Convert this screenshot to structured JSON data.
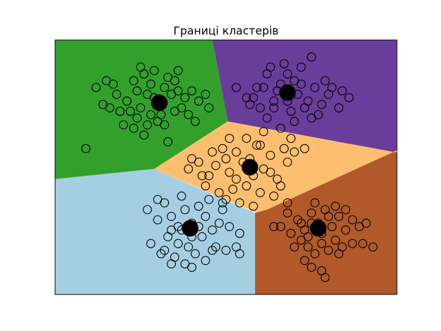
{
  "chart_data": {
    "type": "scatter",
    "title": "Границі кластерів",
    "xlabel": "",
    "ylabel": "",
    "xlim": [
      0,
      10
    ],
    "ylim": [
      0,
      7.5
    ],
    "ticks_visible": false,
    "grid": false,
    "regions": [
      {
        "color": "#33a02c",
        "polygon": [
          [
            0,
            7.5
          ],
          [
            4.6,
            7.5
          ],
          [
            5.05,
            5.1
          ],
          [
            2.9,
            3.7
          ],
          [
            0,
            3.4
          ]
        ]
      },
      {
        "color": "#6a3d9a",
        "polygon": [
          [
            4.6,
            7.5
          ],
          [
            10,
            7.5
          ],
          [
            10,
            4.25
          ],
          [
            9.9,
            4.2
          ],
          [
            5.05,
            5.1
          ]
        ]
      },
      {
        "color": "#fdbf6f",
        "polygon": [
          [
            2.9,
            3.7
          ],
          [
            5.05,
            5.1
          ],
          [
            9.9,
            4.2
          ],
          [
            6.2,
            2.5
          ],
          [
            5.9,
            2.4
          ]
        ]
      },
      {
        "color": "#a6cee3",
        "polygon": [
          [
            0,
            0
          ],
          [
            5.85,
            0
          ],
          [
            5.85,
            2.4
          ],
          [
            2.9,
            3.7
          ],
          [
            0,
            3.4
          ]
        ]
      },
      {
        "color": "#b15928",
        "polygon": [
          [
            5.85,
            0
          ],
          [
            10,
            0
          ],
          [
            10,
            4.2
          ],
          [
            9.9,
            4.2
          ],
          [
            6.2,
            2.5
          ],
          [
            5.85,
            2.4
          ]
        ]
      }
    ],
    "centroids": [
      {
        "x": 3.05,
        "y": 5.65
      },
      {
        "x": 6.8,
        "y": 5.95
      },
      {
        "x": 5.7,
        "y": 3.75
      },
      {
        "x": 3.95,
        "y": 1.95
      },
      {
        "x": 7.7,
        "y": 1.95
      }
    ],
    "points": [
      [
        1.2,
        6.1
      ],
      [
        1.5,
        6.3
      ],
      [
        1.7,
        6.2
      ],
      [
        1.4,
        5.6
      ],
      [
        1.6,
        5.5
      ],
      [
        1.9,
        5.4
      ],
      [
        2.1,
        5.7
      ],
      [
        2.3,
        6.3
      ],
      [
        2.6,
        6.5
      ],
      [
        2.4,
        5.2
      ],
      [
        2.7,
        5.0
      ],
      [
        2.9,
        5.8
      ],
      [
        3.2,
        6.1
      ],
      [
        3.4,
        5.9
      ],
      [
        3.1,
        5.3
      ],
      [
        3.5,
        5.4
      ],
      [
        3.6,
        6.0
      ],
      [
        2.8,
        6.2
      ],
      [
        3.3,
        6.4
      ],
      [
        3.0,
        5.6
      ],
      [
        2.5,
        5.5
      ],
      [
        3.8,
        5.8
      ],
      [
        4.2,
        5.7
      ],
      [
        4.1,
        5.1
      ],
      [
        4.5,
        5.5
      ],
      [
        3.9,
        5.3
      ],
      [
        2.0,
        5.0
      ],
      [
        2.6,
        4.7
      ],
      [
        3.3,
        4.5
      ],
      [
        0.9,
        4.3
      ],
      [
        2.3,
        4.9
      ],
      [
        2.8,
        5.3
      ],
      [
        3.5,
        6.3
      ],
      [
        1.8,
        5.9
      ],
      [
        2.2,
        5.4
      ],
      [
        2.7,
        5.9
      ],
      [
        3.2,
        5.0
      ],
      [
        3.7,
        5.5
      ],
      [
        4.0,
        6.0
      ],
      [
        4.4,
        5.9
      ],
      [
        2.4,
        6.0
      ],
      [
        2.9,
        6.6
      ],
      [
        3.0,
        5.1
      ],
      [
        2.5,
        6.7
      ],
      [
        3.6,
        6.6
      ],
      [
        5.3,
        6.1
      ],
      [
        5.6,
        5.8
      ],
      [
        5.9,
        6.1
      ],
      [
        6.2,
        6.5
      ],
      [
        6.4,
        5.7
      ],
      [
        6.6,
        6.2
      ],
      [
        6.8,
        5.7
      ],
      [
        7.0,
        6.3
      ],
      [
        7.2,
        6.7
      ],
      [
        7.4,
        5.7
      ],
      [
        7.6,
        6.1
      ],
      [
        7.8,
        5.6
      ],
      [
        8.0,
        5.9
      ],
      [
        8.1,
        6.1
      ],
      [
        8.4,
        6.0
      ],
      [
        7.9,
        6.3
      ],
      [
        6.7,
        6.8
      ],
      [
        6.0,
        5.5
      ],
      [
        5.8,
        5.8
      ],
      [
        6.4,
        5.5
      ],
      [
        6.9,
        5.4
      ],
      [
        7.3,
        5.5
      ],
      [
        7.7,
        5.3
      ],
      [
        8.3,
        5.5
      ],
      [
        6.2,
        5.2
      ],
      [
        7.0,
        5.1
      ],
      [
        6.5,
        6.0
      ],
      [
        7.1,
        5.9
      ],
      [
        6.3,
        6.7
      ],
      [
        7.5,
        7.0
      ],
      [
        7.2,
        6.2
      ],
      [
        8.6,
        5.8
      ],
      [
        7.5,
        5.2
      ],
      [
        6.1,
        6.1
      ],
      [
        6.8,
        6.5
      ],
      [
        5.7,
        5.6
      ],
      [
        3.9,
        3.7
      ],
      [
        4.2,
        3.9
      ],
      [
        4.5,
        3.5
      ],
      [
        4.7,
        3.8
      ],
      [
        4.9,
        4.3
      ],
      [
        5.1,
        3.6
      ],
      [
        5.3,
        4.2
      ],
      [
        5.5,
        3.9
      ],
      [
        5.7,
        4.0
      ],
      [
        5.9,
        4.4
      ],
      [
        6.1,
        3.7
      ],
      [
        6.3,
        4.1
      ],
      [
        6.5,
        3.4
      ],
      [
        6.8,
        3.9
      ],
      [
        7.0,
        4.2
      ],
      [
        4.4,
        3.2
      ],
      [
        4.8,
        3.0
      ],
      [
        5.2,
        3.1
      ],
      [
        5.6,
        3.2
      ],
      [
        6.0,
        3.0
      ],
      [
        6.4,
        2.9
      ],
      [
        6.6,
        3.2
      ],
      [
        5.0,
        2.8
      ],
      [
        5.4,
        2.7
      ],
      [
        5.8,
        2.6
      ],
      [
        4.6,
        4.2
      ],
      [
        5.1,
        4.6
      ],
      [
        5.6,
        4.6
      ],
      [
        6.1,
        4.8
      ],
      [
        6.6,
        4.9
      ],
      [
        4.3,
        3.5
      ],
      [
        5.8,
        3.5
      ],
      [
        6.9,
        4.6
      ],
      [
        7.3,
        4.3
      ],
      [
        5.3,
        3.4
      ],
      [
        4.0,
        4.0
      ],
      [
        6.0,
        4.4
      ],
      [
        6.3,
        3.6
      ],
      [
        5.0,
        4.0
      ],
      [
        6.7,
        4.3
      ],
      [
        2.7,
        2.5
      ],
      [
        3.0,
        2.2
      ],
      [
        3.2,
        2.7
      ],
      [
        3.4,
        2.3
      ],
      [
        3.6,
        2.0
      ],
      [
        3.8,
        2.5
      ],
      [
        4.0,
        2.1
      ],
      [
        4.2,
        2.6
      ],
      [
        4.4,
        2.3
      ],
      [
        4.6,
        1.9
      ],
      [
        4.8,
        2.1
      ],
      [
        5.1,
        2.0
      ],
      [
        5.4,
        1.8
      ],
      [
        3.3,
        1.7
      ],
      [
        3.6,
        1.5
      ],
      [
        3.9,
        1.4
      ],
      [
        4.1,
        1.2
      ],
      [
        4.4,
        1.0
      ],
      [
        4.7,
        1.4
      ],
      [
        5.0,
        1.3
      ],
      [
        5.3,
        1.4
      ],
      [
        2.8,
        1.5
      ],
      [
        3.1,
        1.2
      ],
      [
        3.5,
        1.1
      ],
      [
        3.8,
        0.9
      ],
      [
        4.0,
        0.8
      ],
      [
        3.7,
        1.9
      ],
      [
        4.3,
        1.7
      ],
      [
        4.5,
        2.8
      ],
      [
        4.9,
        2.5
      ],
      [
        3.4,
        1.9
      ],
      [
        4.2,
        2.0
      ],
      [
        4.0,
        1.7
      ],
      [
        3.0,
        2.8
      ],
      [
        3.7,
        2.9
      ],
      [
        5.4,
        1.2
      ],
      [
        3.4,
        0.9
      ],
      [
        4.6,
        1.3
      ],
      [
        3.2,
        1.3
      ],
      [
        4.9,
        2.7
      ],
      [
        6.8,
        2.4
      ],
      [
        7.1,
        2.2
      ],
      [
        7.3,
        1.9
      ],
      [
        7.5,
        2.4
      ],
      [
        7.7,
        2.1
      ],
      [
        7.9,
        2.5
      ],
      [
        8.1,
        2.0
      ],
      [
        8.3,
        2.3
      ],
      [
        8.5,
        1.9
      ],
      [
        8.7,
        2.2
      ],
      [
        8.9,
        2.0
      ],
      [
        9.1,
        2.1
      ],
      [
        6.6,
        2.0
      ],
      [
        6.9,
        1.8
      ],
      [
        7.2,
        1.6
      ],
      [
        7.4,
        1.4
      ],
      [
        7.6,
        1.2
      ],
      [
        7.8,
        1.5
      ],
      [
        8.0,
        1.3
      ],
      [
        8.2,
        1.6
      ],
      [
        8.4,
        1.4
      ],
      [
        7.3,
        1.0
      ],
      [
        7.5,
        0.8
      ],
      [
        7.8,
        0.7
      ],
      [
        7.9,
        0.5
      ],
      [
        9.0,
        1.5
      ],
      [
        9.3,
        1.4
      ],
      [
        6.8,
        2.7
      ],
      [
        7.6,
        2.7
      ],
      [
        8.2,
        2.6
      ],
      [
        7.2,
        2.1
      ],
      [
        8.0,
        2.3
      ],
      [
        6.4,
        2.0
      ],
      [
        8.7,
        1.5
      ],
      [
        7.0,
        1.4
      ],
      [
        8.5,
        2.5
      ],
      [
        7.4,
        1.7
      ],
      [
        7.8,
        1.8
      ],
      [
        8.3,
        1.2
      ],
      [
        7.5,
        2.1
      ]
    ]
  }
}
